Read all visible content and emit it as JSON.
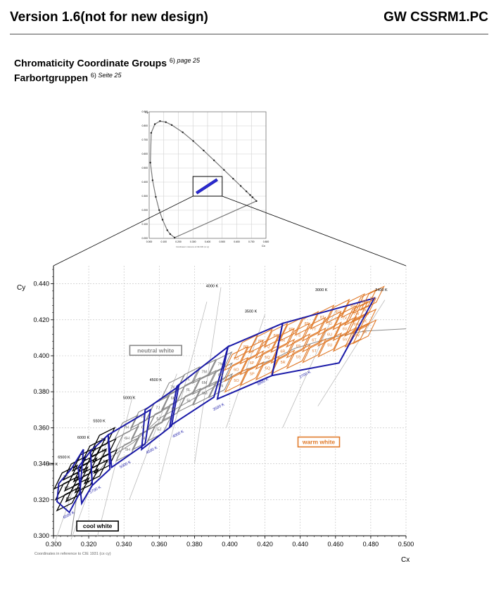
{
  "header": {
    "version": "Version 1.6(not for new design)",
    "code": "GW CSSRM1.PC"
  },
  "titles": {
    "en": "Chromaticity Coordinate Groups",
    "en_ref": "6)",
    "en_page": "page 25",
    "de": "Farbortgruppen",
    "de_ref": "6)",
    "de_page": "Seite 25"
  },
  "colors": {
    "blue": "#1a1aa8",
    "orange": "#e07a2a",
    "gray": "#888888",
    "black": "#000000"
  },
  "mini_chart": {
    "type": "line",
    "ylabel": "Cy",
    "xlabel": "Cx",
    "footnote": "Coordinates in reference to CIE 1931 (cx cy)",
    "xlim": [
      0,
      0.8
    ],
    "ylim": [
      0,
      0.9
    ],
    "xticks": [
      "0.000",
      "0.100",
      "0.200",
      "0.300",
      "0.400",
      "0.500",
      "0.600",
      "0.700",
      "0.800"
    ],
    "yticks": [
      "0.000",
      "0.100",
      "0.200",
      "0.300",
      "0.400",
      "0.500",
      "0.600",
      "0.700",
      "0.800",
      "0.900"
    ],
    "locus": [
      [
        0.1741,
        0.005
      ],
      [
        0.144,
        0.03
      ],
      [
        0.1241,
        0.0578
      ],
      [
        0.0913,
        0.1327
      ],
      [
        0.0687,
        0.2007
      ],
      [
        0.0454,
        0.295
      ],
      [
        0.0235,
        0.4127
      ],
      [
        0.0082,
        0.5384
      ],
      [
        0.0139,
        0.7502
      ],
      [
        0.0389,
        0.812
      ],
      [
        0.0743,
        0.8338
      ],
      [
        0.1142,
        0.8262
      ],
      [
        0.1547,
        0.8059
      ],
      [
        0.2296,
        0.7543
      ],
      [
        0.3016,
        0.6923
      ],
      [
        0.3731,
        0.6245
      ],
      [
        0.4441,
        0.5547
      ],
      [
        0.5125,
        0.4866
      ],
      [
        0.5752,
        0.4242
      ],
      [
        0.627,
        0.3725
      ],
      [
        0.6658,
        0.334
      ],
      [
        0.6915,
        0.3083
      ],
      [
        0.7079,
        0.292
      ],
      [
        0.7347,
        0.2653
      ]
    ],
    "zoom_box": [
      [
        0.3,
        0.3
      ],
      [
        0.5,
        0.44
      ]
    ]
  },
  "chart_data": {
    "type": "scatter",
    "title": "",
    "xlabel": "Cx",
    "ylabel": "Cy",
    "footnote": "Coordinates in reference to CIE 1931 (cx cy)",
    "xlim": [
      0.3,
      0.5
    ],
    "ylim": [
      0.3,
      0.45
    ],
    "xticks": [
      "0.300",
      "0.320",
      "0.340",
      "0.360",
      "0.380",
      "0.400",
      "0.420",
      "0.440",
      "0.460",
      "0.480",
      "0.500"
    ],
    "yticks": [
      "0.300",
      "0.320",
      "0.340",
      "0.360",
      "0.380",
      "0.400",
      "0.420",
      "0.440"
    ],
    "grid": true,
    "planckian_locus": [
      [
        0.31,
        0.3
      ],
      [
        0.3135,
        0.3237
      ],
      [
        0.3221,
        0.3318
      ],
      [
        0.3324,
        0.3437
      ],
      [
        0.3451,
        0.3516
      ],
      [
        0.3611,
        0.3658
      ],
      [
        0.3804,
        0.3767
      ],
      [
        0.4052,
        0.3907
      ],
      [
        0.4254,
        0.3984
      ],
      [
        0.4369,
        0.4041
      ],
      [
        0.4578,
        0.4101
      ],
      [
        0.4763,
        0.4137
      ],
      [
        0.5,
        0.415
      ]
    ],
    "cct_labels": [
      {
        "text": "7000 K",
        "x": 0.299,
        "y": 0.339
      },
      {
        "text": "6500 K",
        "x": 0.306,
        "y": 0.343
      },
      {
        "text": "6000 K",
        "x": 0.317,
        "y": 0.354
      },
      {
        "text": "5500 K",
        "x": 0.326,
        "y": 0.363
      },
      {
        "text": "5000 K",
        "x": 0.343,
        "y": 0.376
      },
      {
        "text": "4500 K",
        "x": 0.358,
        "y": 0.386
      },
      {
        "text": "4000 K",
        "x": 0.39,
        "y": 0.438
      },
      {
        "text": "3500 K",
        "x": 0.412,
        "y": 0.424
      },
      {
        "text": "3000 K",
        "x": 0.452,
        "y": 0.436
      },
      {
        "text": "2400 K",
        "x": 0.486,
        "y": 0.436
      }
    ],
    "isotherm_labels": [
      {
        "text": "6500 K",
        "x": 0.309,
        "y": 0.311
      },
      {
        "text": "5700 K",
        "x": 0.324,
        "y": 0.325
      },
      {
        "text": "5000 K",
        "x": 0.341,
        "y": 0.339
      },
      {
        "text": "4500 K",
        "x": 0.356,
        "y": 0.347
      },
      {
        "text": "4000 K",
        "x": 0.371,
        "y": 0.356
      },
      {
        "text": "3500 K",
        "x": 0.394,
        "y": 0.371
      },
      {
        "text": "3000 K",
        "x": 0.419,
        "y": 0.385
      },
      {
        "text": "2700 K",
        "x": 0.443,
        "y": 0.389
      }
    ],
    "group_labels": [
      {
        "text": "7C",
        "color": "black",
        "x": 0.307,
        "y": 0.3326
      },
      {
        "text": "6C",
        "color": "black",
        "x": 0.3077,
        "y": 0.3265
      },
      {
        "text": "5C",
        "color": "black",
        "x": 0.3085,
        "y": 0.3205
      },
      {
        "text": "7D",
        "color": "black",
        "x": 0.3122,
        "y": 0.3376
      },
      {
        "text": "6D",
        "color": "black",
        "x": 0.3129,
        "y": 0.3315
      },
      {
        "text": "5D",
        "color": "black",
        "x": 0.3136,
        "y": 0.3255
      },
      {
        "text": "7E",
        "color": "black",
        "x": 0.3174,
        "y": 0.3426
      },
      {
        "text": "6E",
        "color": "black",
        "x": 0.318,
        "y": 0.3366
      },
      {
        "text": "5E",
        "color": "black",
        "x": 0.3188,
        "y": 0.3305
      },
      {
        "text": "7F",
        "color": "black",
        "x": 0.3228,
        "y": 0.3476
      },
      {
        "text": "6F",
        "color": "black",
        "x": 0.3234,
        "y": 0.3416
      },
      {
        "text": "5F",
        "color": "black",
        "x": 0.3241,
        "y": 0.3355
      },
      {
        "text": "7G",
        "color": "black",
        "x": 0.3282,
        "y": 0.3535
      },
      {
        "text": "6G",
        "color": "black",
        "x": 0.3289,
        "y": 0.3474
      },
      {
        "text": "5G",
        "color": "black",
        "x": 0.3296,
        "y": 0.3414
      },
      {
        "text": "7H",
        "color": "gray",
        "x": 0.3413,
        "y": 0.3604
      },
      {
        "text": "6H",
        "color": "gray",
        "x": 0.3417,
        "y": 0.3542
      },
      {
        "text": "5H",
        "color": "gray",
        "x": 0.3421,
        "y": 0.3481
      },
      {
        "text": "7I",
        "color": "gray",
        "x": 0.3504,
        "y": 0.3664
      },
      {
        "text": "6I",
        "color": "gray",
        "x": 0.3508,
        "y": 0.3603
      },
      {
        "text": "5I",
        "color": "gray",
        "x": 0.3512,
        "y": 0.3543
      },
      {
        "text": "7J",
        "color": "gray",
        "x": 0.3592,
        "y": 0.3712
      },
      {
        "text": "6J",
        "color": "gray",
        "x": 0.3596,
        "y": 0.3652
      },
      {
        "text": "5J",
        "color": "gray",
        "x": 0.3599,
        "y": 0.3592
      },
      {
        "text": "7K",
        "color": "gray",
        "x": 0.3677,
        "y": 0.3826
      },
      {
        "text": "6K",
        "color": "gray",
        "x": 0.3679,
        "y": 0.3765
      },
      {
        "text": "5K",
        "color": "gray",
        "x": 0.3682,
        "y": 0.3705
      },
      {
        "text": "7L",
        "color": "gray",
        "x": 0.3763,
        "y": 0.3872
      },
      {
        "text": "6L",
        "color": "gray",
        "x": 0.3766,
        "y": 0.3812
      },
      {
        "text": "5L",
        "color": "gray",
        "x": 0.3768,
        "y": 0.3752
      },
      {
        "text": "7M",
        "color": "gray",
        "x": 0.3855,
        "y": 0.3913
      },
      {
        "text": "6M",
        "color": "gray",
        "x": 0.3856,
        "y": 0.3852
      },
      {
        "text": "5M",
        "color": "gray",
        "x": 0.3858,
        "y": 0.3792
      },
      {
        "text": "7N",
        "color": "gray",
        "x": 0.3946,
        "y": 0.3955
      },
      {
        "text": "6N",
        "color": "gray",
        "x": 0.3948,
        "y": 0.3894
      },
      {
        "text": "5N",
        "color": "gray",
        "x": 0.3949,
        "y": 0.3834
      },
      {
        "text": "7O",
        "color": "orange",
        "x": 0.4036,
        "y": 0.3985
      },
      {
        "text": "6O",
        "color": "orange",
        "x": 0.4037,
        "y": 0.3924
      },
      {
        "text": "5O",
        "color": "orange",
        "x": 0.4038,
        "y": 0.3864
      },
      {
        "text": "8O",
        "color": "orange",
        "x": 0.4092,
        "y": 0.4051
      },
      {
        "text": "8P",
        "color": "orange",
        "x": 0.4175,
        "y": 0.4082
      },
      {
        "text": "7P",
        "color": "orange",
        "x": 0.4125,
        "y": 0.4021
      },
      {
        "text": "6P",
        "color": "orange",
        "x": 0.4126,
        "y": 0.3961
      },
      {
        "text": "5P",
        "color": "orange",
        "x": 0.4127,
        "y": 0.39
      },
      {
        "text": "8Q",
        "color": "orange",
        "x": 0.4262,
        "y": 0.4114
      },
      {
        "text": "7Q",
        "color": "orange",
        "x": 0.4213,
        "y": 0.4052
      },
      {
        "text": "6Q",
        "color": "orange",
        "x": 0.4214,
        "y": 0.3992
      },
      {
        "text": "5Q",
        "color": "orange",
        "x": 0.4215,
        "y": 0.3932
      },
      {
        "text": "8R",
        "color": "orange",
        "x": 0.4349,
        "y": 0.4148
      },
      {
        "text": "7R",
        "color": "orange",
        "x": 0.43,
        "y": 0.4085
      },
      {
        "text": "6R",
        "color": "orange",
        "x": 0.4301,
        "y": 0.4025
      },
      {
        "text": "5R",
        "color": "orange",
        "x": 0.4302,
        "y": 0.3965
      },
      {
        "text": "8S",
        "color": "orange",
        "x": 0.4437,
        "y": 0.418
      },
      {
        "text": "7S",
        "color": "orange",
        "x": 0.4388,
        "y": 0.4115
      },
      {
        "text": "6S",
        "color": "orange",
        "x": 0.4389,
        "y": 0.4055
      },
      {
        "text": "5S",
        "color": "orange",
        "x": 0.439,
        "y": 0.3995
      },
      {
        "text": "8T",
        "color": "orange",
        "x": 0.4525,
        "y": 0.4215
      },
      {
        "text": "7T",
        "color": "orange",
        "x": 0.4478,
        "y": 0.4148
      },
      {
        "text": "6T",
        "color": "orange",
        "x": 0.4479,
        "y": 0.4088
      },
      {
        "text": "5T",
        "color": "orange",
        "x": 0.448,
        "y": 0.4028
      },
      {
        "text": "8U",
        "color": "orange",
        "x": 0.4613,
        "y": 0.4247
      },
      {
        "text": "7U",
        "color": "orange",
        "x": 0.4566,
        "y": 0.418
      },
      {
        "text": "6U",
        "color": "orange",
        "x": 0.4567,
        "y": 0.412
      },
      {
        "text": "5U",
        "color": "orange",
        "x": 0.4568,
        "y": 0.406
      },
      {
        "text": "8V",
        "color": "orange",
        "x": 0.4699,
        "y": 0.4278
      },
      {
        "text": "7V",
        "color": "orange",
        "x": 0.4652,
        "y": 0.4211
      },
      {
        "text": "6V",
        "color": "orange",
        "x": 0.4653,
        "y": 0.4151
      },
      {
        "text": "5V",
        "color": "orange",
        "x": 0.4654,
        "y": 0.4091
      },
      {
        "text": "8W",
        "color": "orange",
        "x": 0.4765,
        "y": 0.4302
      },
      {
        "text": "7W",
        "color": "orange",
        "x": 0.4718,
        "y": 0.4235
      },
      {
        "text": "6W",
        "color": "orange",
        "x": 0.4719,
        "y": 0.4175
      },
      {
        "text": "5W",
        "color": "orange",
        "x": 0.472,
        "y": 0.4115
      },
      {
        "text": "8X",
        "color": "orange",
        "x": 0.481,
        "y": 0.432
      },
      {
        "text": "7X",
        "color": "orange",
        "x": 0.4763,
        "y": 0.4253
      },
      {
        "text": "6X",
        "color": "orange",
        "x": 0.4764,
        "y": 0.4193
      },
      {
        "text": "5X",
        "color": "orange",
        "x": 0.4765,
        "y": 0.4133
      }
    ],
    "region_labels": [
      {
        "text": "neutral white",
        "color": "gray",
        "x": 0.358,
        "y": 0.403
      },
      {
        "text": "warm white",
        "color": "orange",
        "x": 0.4505,
        "y": 0.3521
      },
      {
        "text": "cool white",
        "color": "black",
        "x": 0.325,
        "y": 0.3054
      }
    ]
  }
}
